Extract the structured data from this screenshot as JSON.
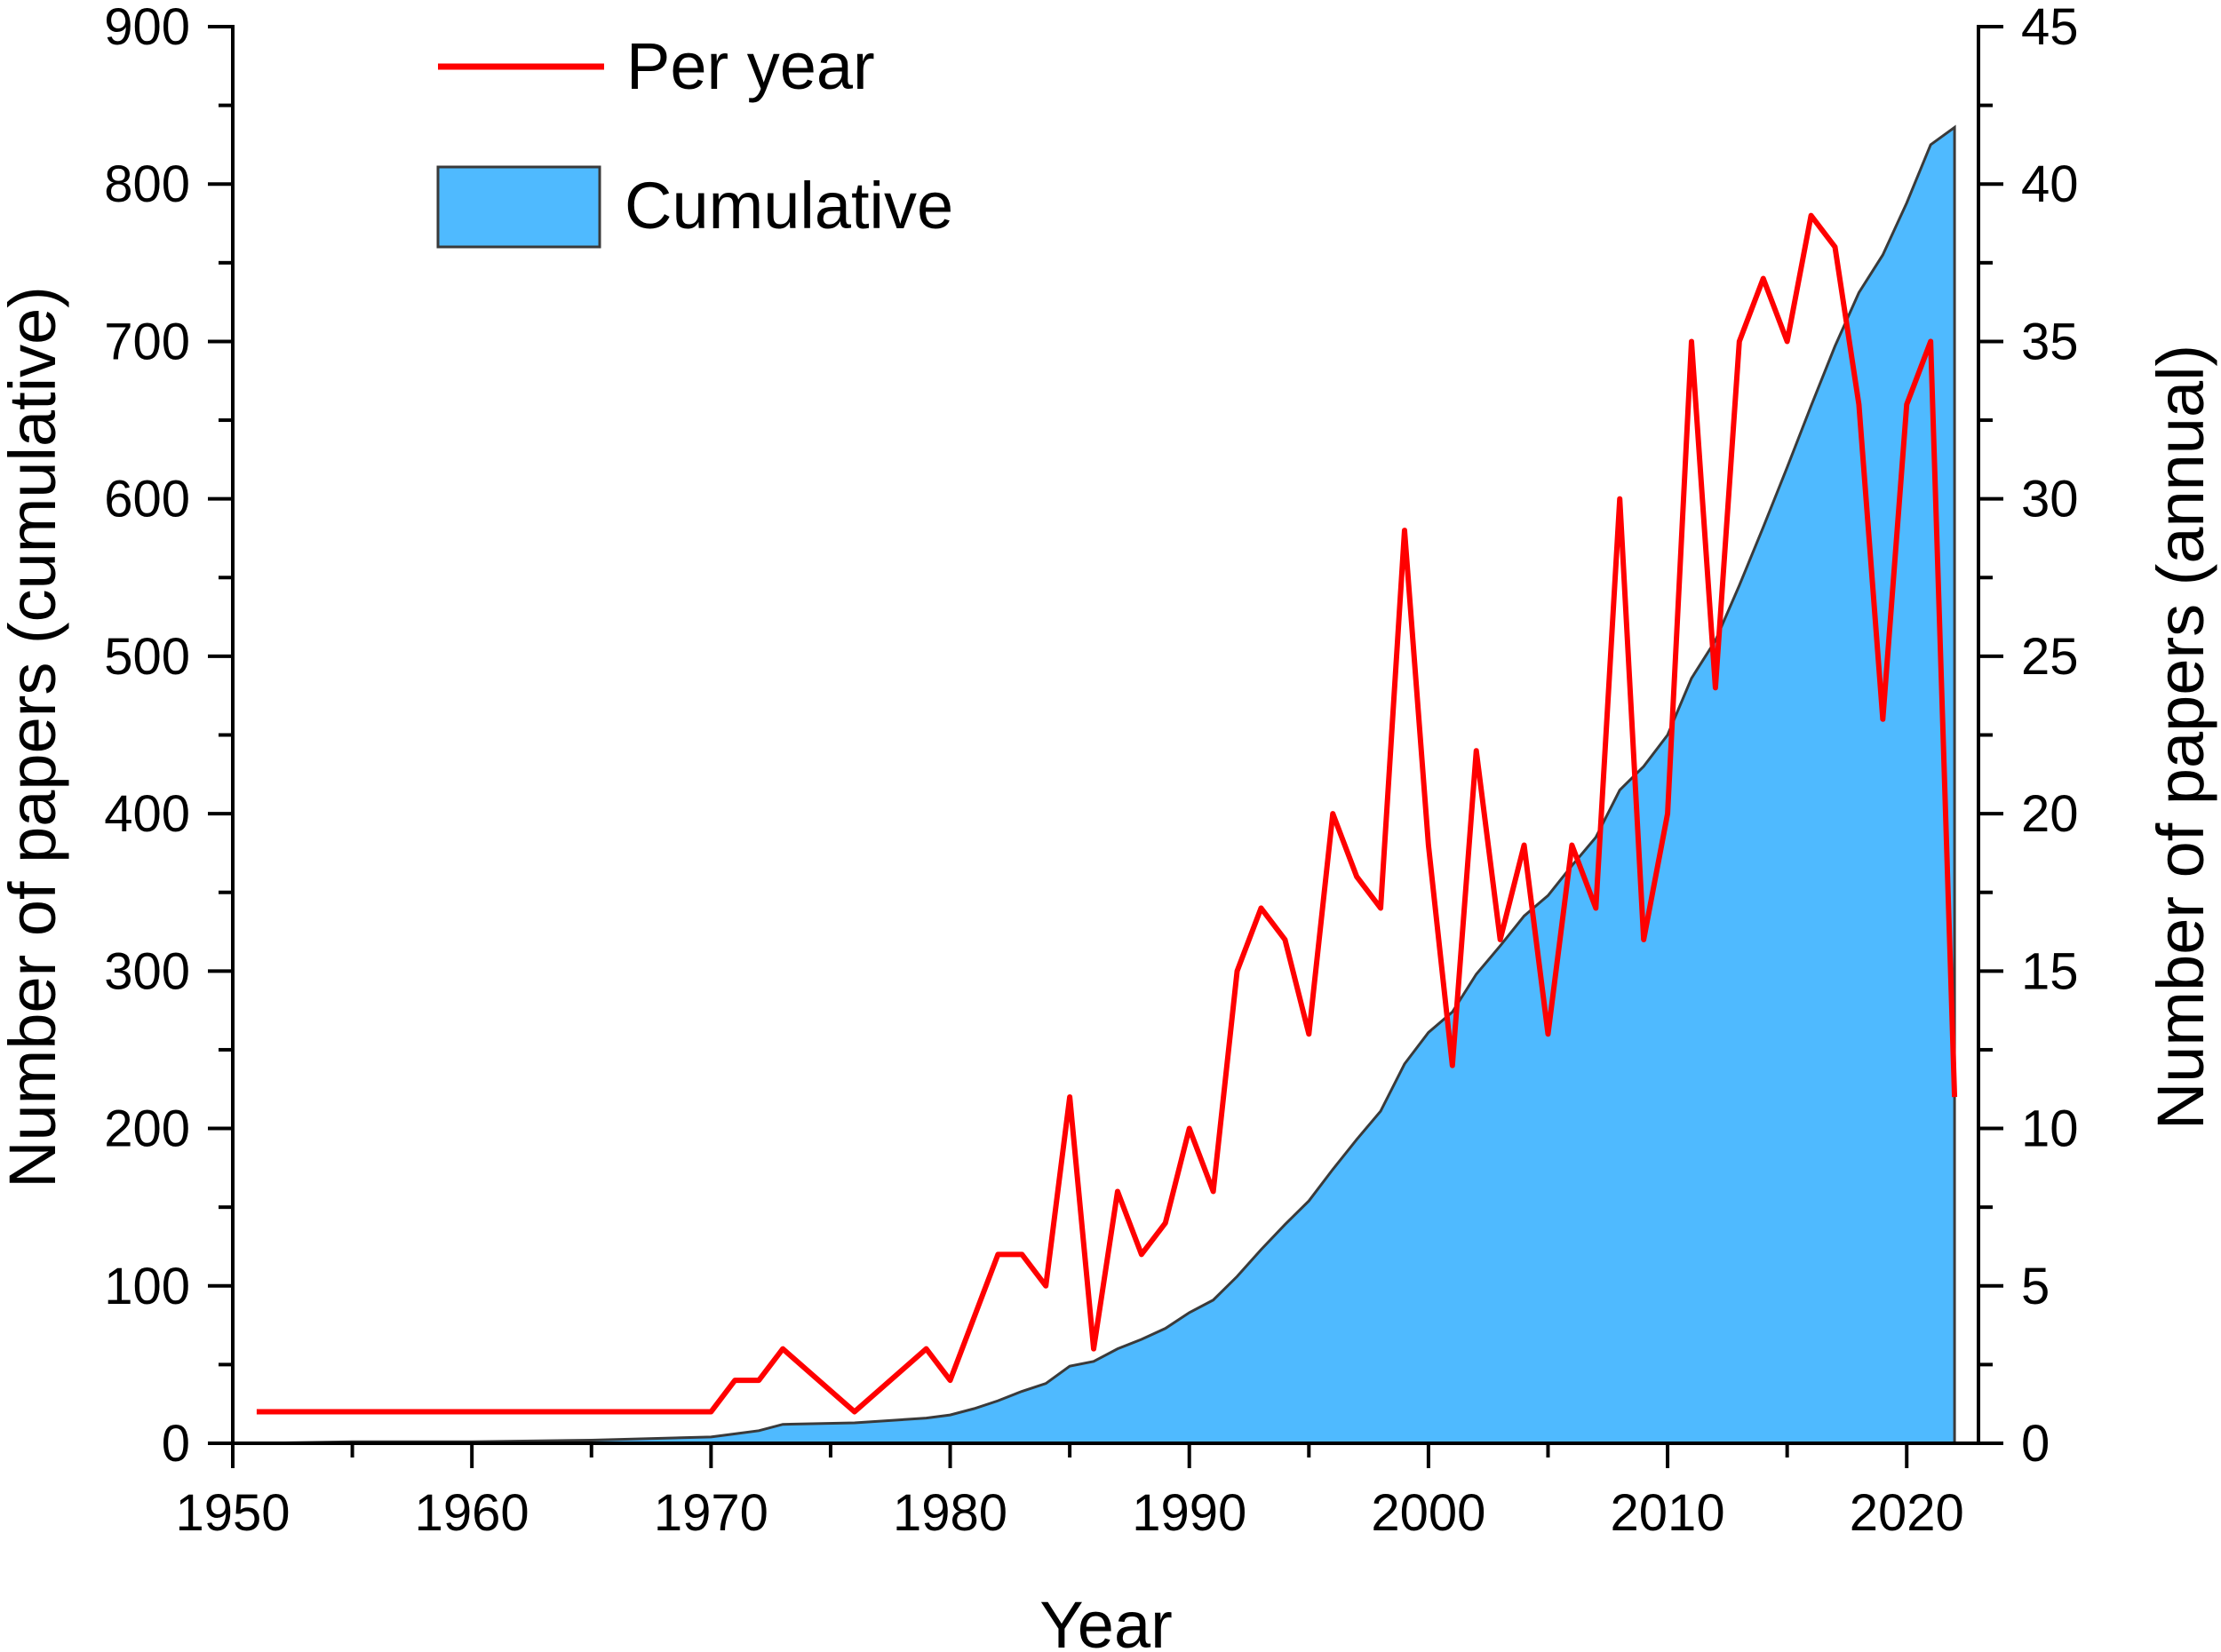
{
  "chart_data": {
    "type": "line+area",
    "xlabel": "Year",
    "ylabel_left": "Number of papers (cumulative)",
    "ylabel_right": "Number of papers (annual)",
    "xlim": [
      1950,
      2023
    ],
    "ylim_left": [
      0,
      900
    ],
    "ylim_right": [
      0,
      45
    ],
    "x_ticks": [
      1950,
      1960,
      1970,
      1980,
      1990,
      2000,
      2010,
      2020
    ],
    "y_ticks_left": [
      0,
      100,
      200,
      300,
      400,
      500,
      600,
      700,
      800,
      900
    ],
    "y_ticks_right": [
      0,
      5,
      10,
      15,
      20,
      25,
      30,
      35,
      40,
      45
    ],
    "legend": [
      "Per year",
      "Cumulative"
    ],
    "colors": {
      "per_year": "#ff0000",
      "cumulative_fill": "#4fbaff",
      "cumulative_edge": "#3a3a3a",
      "axis": "#000000"
    },
    "series": [
      {
        "name": "Per year",
        "axis": "right",
        "x": [
          1951,
          1970,
          1971,
          1972,
          1973,
          1976,
          1979,
          1980,
          1982,
          1983,
          1984,
          1985,
          1986,
          1987,
          1988,
          1989,
          1990,
          1991,
          1992,
          1993,
          1994,
          1995,
          1996,
          1997,
          1998,
          1999,
          2000,
          2001,
          2002,
          2003,
          2004,
          2005,
          2006,
          2007,
          2008,
          2009,
          2010,
          2011,
          2012,
          2013,
          2014,
          2015,
          2016,
          2017,
          2018,
          2019,
          2020,
          2021,
          2022
        ],
        "values": [
          1,
          1,
          2,
          2,
          3,
          1,
          3,
          2,
          6,
          6,
          5,
          11,
          3,
          8,
          6,
          7,
          10,
          8,
          15,
          17,
          16,
          13,
          20,
          18,
          17,
          29,
          19,
          12,
          22,
          16,
          19,
          13,
          19,
          17,
          30,
          16,
          20,
          35,
          24,
          35,
          37,
          35,
          39,
          38,
          33,
          23,
          33,
          35,
          11
        ]
      },
      {
        "name": "Cumulative",
        "axis": "left",
        "x": [
          1951,
          1955,
          1960,
          1965,
          1970,
          1971,
          1972,
          1973,
          1976,
          1979,
          1980,
          1981,
          1982,
          1983,
          1984,
          1985,
          1986,
          1987,
          1988,
          1989,
          1990,
          1991,
          1992,
          1993,
          1994,
          1995,
          1996,
          1997,
          1998,
          1999,
          2000,
          2001,
          2002,
          2003,
          2004,
          2005,
          2006,
          2007,
          2008,
          2009,
          2010,
          2011,
          2012,
          2013,
          2014,
          2015,
          2016,
          2017,
          2018,
          2019,
          2020,
          2021,
          2022
        ],
        "values": [
          0,
          1,
          1,
          2,
          4,
          6,
          8,
          12,
          13,
          16,
          18,
          22,
          27,
          33,
          38,
          49,
          52,
          60,
          66,
          73,
          83,
          91,
          106,
          123,
          139,
          154,
          174,
          193,
          211,
          241,
          261,
          274,
          298,
          316,
          335,
          348,
          367,
          385,
          415,
          430,
          450,
          486,
          510,
          545,
          582,
          620,
          659,
          697,
          731,
          755,
          788,
          825,
          836
        ]
      }
    ]
  }
}
